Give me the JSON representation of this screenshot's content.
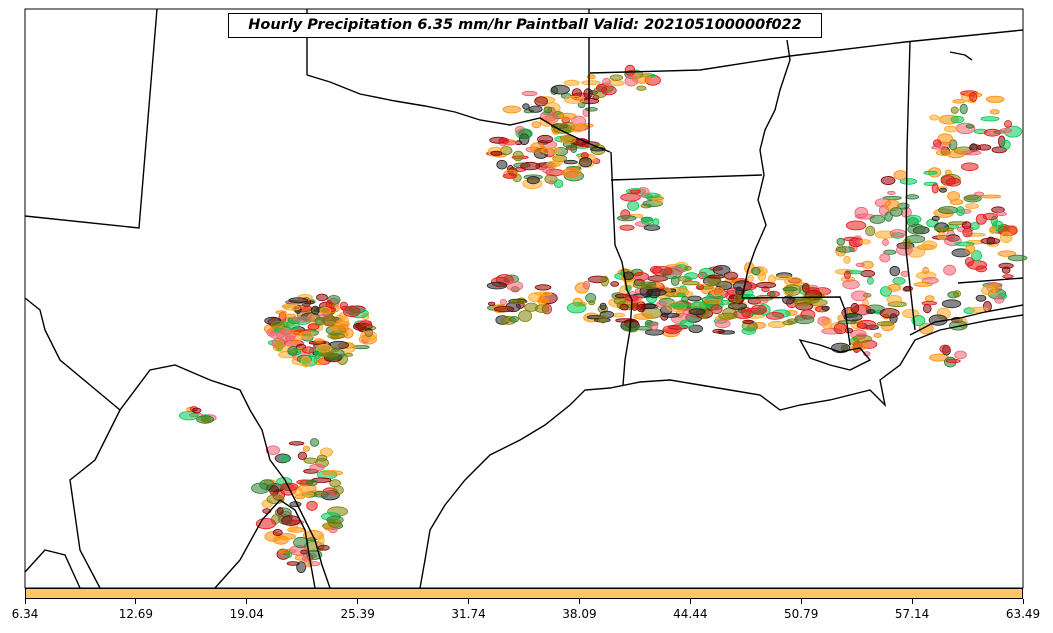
{
  "map": {
    "title": "Hourly Precipitation 6.35 mm/hr Paintball Valid: 202105100000f022",
    "colorbar": {
      "color": "#ffc75f",
      "ticks": [
        "6.34",
        "12.69",
        "19.04",
        "25.39",
        "31.74",
        "38.09",
        "44.44",
        "50.79",
        "57.14",
        "63.49"
      ]
    },
    "member_colors": [
      "#e31a1c",
      "#8b0000",
      "#ff8c00",
      "#ffa726",
      "#00c853",
      "#2e7d32",
      "#808000",
      "#222222",
      "#f06070"
    ]
  }
}
